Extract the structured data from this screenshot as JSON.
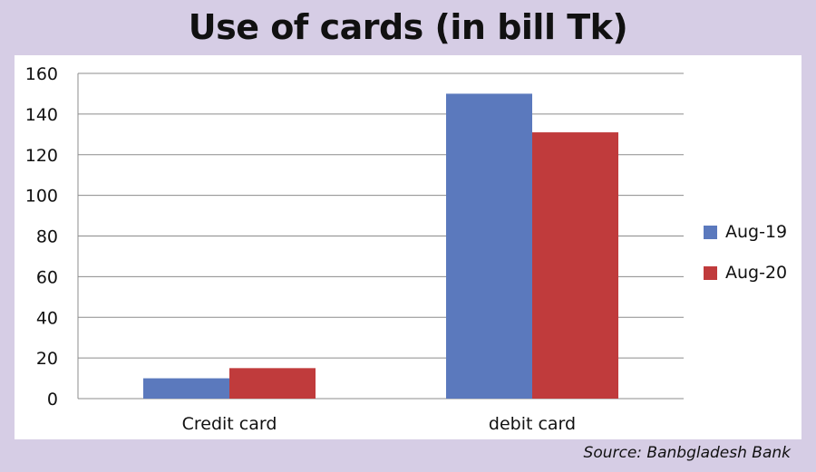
{
  "title": "Use of cards (in bill Tk)",
  "source": "Source: Banbgladesh Bank",
  "colors": {
    "background": "#d6cde5",
    "panel": "#ffffff",
    "grid": "#8c8c8c",
    "aug19": "#5b79bd",
    "aug20": "#c03b3c"
  },
  "chart_data": {
    "type": "bar",
    "title": "Use of cards (in bill Tk)",
    "categories": [
      "Credit card",
      "debit card"
    ],
    "series": [
      {
        "name": "Aug-19",
        "values": [
          10,
          150
        ],
        "color": "#5b79bd"
      },
      {
        "name": "Aug-20",
        "values": [
          15,
          131
        ],
        "color": "#c03b3c"
      }
    ],
    "ylim": [
      0,
      160
    ],
    "yticks": [
      0,
      20,
      40,
      60,
      80,
      100,
      120,
      140,
      160
    ],
    "grid": true,
    "legend": "right",
    "xlabel": "",
    "ylabel": ""
  }
}
